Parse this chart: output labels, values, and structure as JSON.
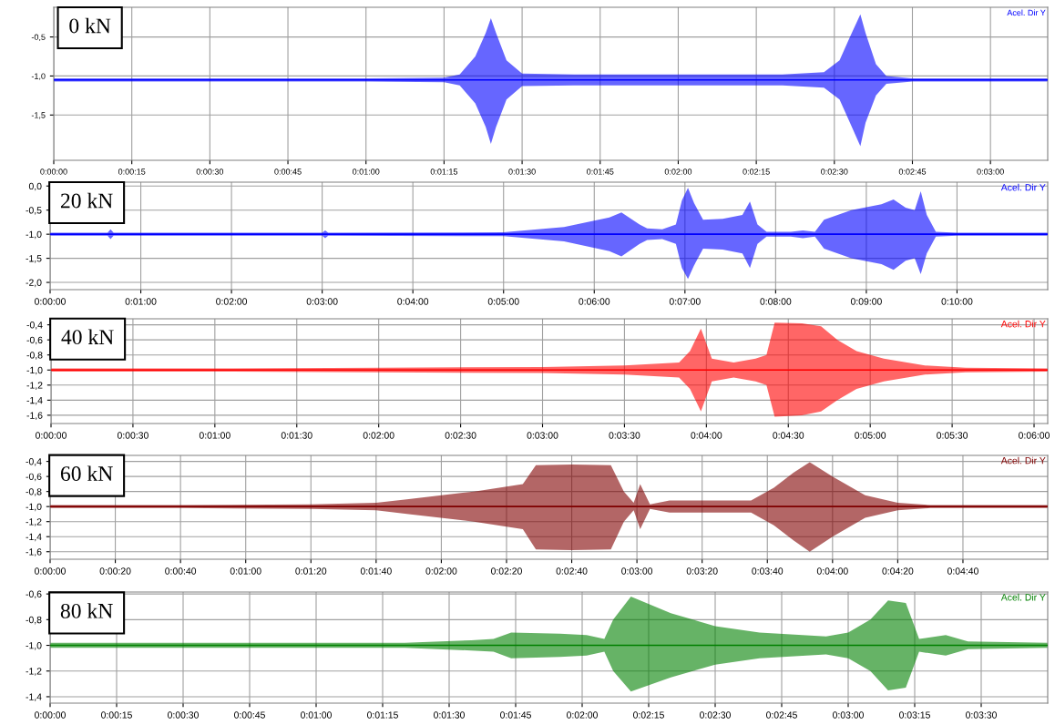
{
  "chart_data": [
    {
      "type": "line",
      "annotations": [
        "0 kN"
      ],
      "legend": "top right",
      "grid": true,
      "xlim": [
        0,
        191
      ],
      "ylim": [
        -2.08,
        -0.12
      ],
      "xticks": [
        {
          "value": 0,
          "label": "0:00:00"
        },
        {
          "value": 15,
          "label": "0:00:15"
        },
        {
          "value": 30,
          "label": "0:00:30"
        },
        {
          "value": 45,
          "label": "0:00:45"
        },
        {
          "value": 60,
          "label": "0:01:00"
        },
        {
          "value": 75,
          "label": "0:01:15"
        },
        {
          "value": 90,
          "label": "0:01:30"
        },
        {
          "value": 105,
          "label": "0:01:45"
        },
        {
          "value": 120,
          "label": "0:02:00"
        },
        {
          "value": 135,
          "label": "0:02:15"
        },
        {
          "value": 150,
          "label": "0:02:30"
        },
        {
          "value": 165,
          "label": "0:02:45"
        },
        {
          "value": 180,
          "label": "0:03:00"
        }
      ],
      "yticks": [
        {
          "value": -0.5,
          "label": "-0,5"
        },
        {
          "value": -1.0,
          "label": "-1,0"
        },
        {
          "value": -1.5,
          "label": "-1,5"
        }
      ],
      "series": [
        {
          "name": "Acel. Dir Y",
          "color": "#0000ff",
          "x": [
            0,
            30,
            60,
            75,
            78,
            81,
            83,
            84,
            85,
            87,
            90,
            100,
            120,
            140,
            148,
            151,
            153,
            155,
            156,
            158,
            160,
            165,
            180,
            191
          ],
          "values": [
            -1.05,
            -1.05,
            -1.05,
            -1.05,
            -1.05,
            -1.05,
            -1.05,
            -1.05,
            -1.05,
            -1.05,
            -1.05,
            -1.05,
            -1.05,
            -1.05,
            -1.05,
            -1.05,
            -1.05,
            -1.05,
            -1.05,
            -1.05,
            -1.05,
            -1.05,
            -1.05,
            -1.05
          ],
          "upper": [
            -1.03,
            -1.03,
            -1.03,
            -1.02,
            -0.98,
            -0.75,
            -0.45,
            -0.26,
            -0.45,
            -0.8,
            -0.97,
            -0.98,
            -0.98,
            -0.98,
            -0.95,
            -0.8,
            -0.5,
            -0.21,
            -0.45,
            -0.85,
            -1.0,
            -1.03,
            -1.03,
            -1.03
          ],
          "lower": [
            -1.07,
            -1.07,
            -1.07,
            -1.08,
            -1.12,
            -1.35,
            -1.65,
            -1.87,
            -1.65,
            -1.3,
            -1.13,
            -1.12,
            -1.12,
            -1.12,
            -1.15,
            -1.3,
            -1.6,
            -1.9,
            -1.6,
            -1.25,
            -1.1,
            -1.07,
            -1.07,
            -1.07
          ]
        }
      ]
    },
    {
      "type": "line",
      "annotations": [
        "20 kN"
      ],
      "legend": "top right",
      "grid": true,
      "xlim": [
        0,
        660
      ],
      "ylim": [
        -2.15,
        0.08
      ],
      "xticks": [
        {
          "value": 0,
          "label": "0:00:00"
        },
        {
          "value": 60,
          "label": "0:01:00"
        },
        {
          "value": 120,
          "label": "0:02:00"
        },
        {
          "value": 180,
          "label": "0:03:00"
        },
        {
          "value": 240,
          "label": "0:04:00"
        },
        {
          "value": 300,
          "label": "0:05:00"
        },
        {
          "value": 360,
          "label": "0:06:00"
        },
        {
          "value": 420,
          "label": "0:07:00"
        },
        {
          "value": 480,
          "label": "0:08:00"
        },
        {
          "value": 540,
          "label": "0:09:00"
        },
        {
          "value": 600,
          "label": "0:10:00"
        }
      ],
      "yticks": [
        {
          "value": 0.0,
          "label": "0,0"
        },
        {
          "value": -0.5,
          "label": "-0,5"
        },
        {
          "value": -1.0,
          "label": "-1,0"
        },
        {
          "value": -1.5,
          "label": "-1,5"
        },
        {
          "value": -2.0,
          "label": "-2,0"
        }
      ],
      "series": [
        {
          "name": "Acel. Dir Y",
          "color": "#0000ff",
          "x": [
            0,
            38,
            40,
            42,
            180,
            182,
            184,
            300,
            340,
            370,
            378,
            390,
            395,
            405,
            414,
            418,
            422,
            426,
            432,
            445,
            458,
            463,
            468,
            474,
            490,
            498,
            506,
            512,
            530,
            550,
            558,
            566,
            572,
            576,
            580,
            586,
            600,
            660
          ],
          "values": [
            -1.0,
            -1.0,
            -1.0,
            -1.0,
            -1.0,
            -1.0,
            -1.0,
            -1.0,
            -1.0,
            -1.0,
            -1.0,
            -1.0,
            -1.0,
            -1.0,
            -1.0,
            -1.0,
            -1.0,
            -1.0,
            -1.0,
            -1.0,
            -1.0,
            -1.0,
            -1.0,
            -1.0,
            -1.0,
            -1.0,
            -1.0,
            -1.0,
            -1.0,
            -1.0,
            -1.0,
            -1.0,
            -1.0,
            -1.0,
            -1.0,
            -1.0,
            -1.0,
            -1.0
          ],
          "upper": [
            -0.97,
            -0.97,
            -0.9,
            -0.97,
            -0.97,
            -0.92,
            -0.97,
            -0.96,
            -0.85,
            -0.65,
            -0.55,
            -0.8,
            -0.88,
            -0.9,
            -0.8,
            -0.3,
            -0.04,
            -0.35,
            -0.7,
            -0.68,
            -0.6,
            -0.32,
            -0.8,
            -0.95,
            -0.95,
            -0.92,
            -0.95,
            -0.7,
            -0.5,
            -0.38,
            -0.28,
            -0.45,
            -0.5,
            -0.11,
            -0.6,
            -0.95,
            -0.97,
            -0.97
          ],
          "lower": [
            -1.03,
            -1.03,
            -1.1,
            -1.03,
            -1.03,
            -1.08,
            -1.03,
            -1.04,
            -1.15,
            -1.35,
            -1.46,
            -1.2,
            -1.12,
            -1.1,
            -1.2,
            -1.7,
            -1.93,
            -1.65,
            -1.3,
            -1.32,
            -1.4,
            -1.7,
            -1.2,
            -1.05,
            -1.05,
            -1.08,
            -1.05,
            -1.3,
            -1.5,
            -1.62,
            -1.74,
            -1.55,
            -1.5,
            -1.83,
            -1.4,
            -1.05,
            -1.03,
            -1.03
          ]
        }
      ]
    },
    {
      "type": "line",
      "annotations": [
        "40 kN"
      ],
      "legend": "top right",
      "grid": true,
      "xlim": [
        0,
        365
      ],
      "ylim": [
        -1.71,
        -0.32
      ],
      "xticks": [
        {
          "value": 0,
          "label": "0:00:00"
        },
        {
          "value": 30,
          "label": "0:00:30"
        },
        {
          "value": 60,
          "label": "0:01:00"
        },
        {
          "value": 90,
          "label": "0:01:30"
        },
        {
          "value": 120,
          "label": "0:02:00"
        },
        {
          "value": 150,
          "label": "0:02:30"
        },
        {
          "value": 180,
          "label": "0:03:00"
        },
        {
          "value": 210,
          "label": "0:03:30"
        },
        {
          "value": 240,
          "label": "0:04:00"
        },
        {
          "value": 270,
          "label": "0:04:30"
        },
        {
          "value": 300,
          "label": "0:05:00"
        },
        {
          "value": 330,
          "label": "0:05:30"
        },
        {
          "value": 360,
          "label": "0:06:00"
        }
      ],
      "yticks": [
        {
          "value": -0.4,
          "label": "-0,4"
        },
        {
          "value": -0.6,
          "label": "-0,6"
        },
        {
          "value": -0.8,
          "label": "-0,8"
        },
        {
          "value": -1.0,
          "label": "-1,0"
        },
        {
          "value": -1.2,
          "label": "-1,2"
        },
        {
          "value": -1.4,
          "label": "-1,4"
        },
        {
          "value": -1.6,
          "label": "-1,6"
        }
      ],
      "series": [
        {
          "name": "Acel. Dir Y",
          "color": "#ff0000",
          "x": [
            0,
            60,
            120,
            180,
            210,
            230,
            234,
            238,
            242,
            250,
            258,
            262,
            265,
            275,
            282,
            288,
            295,
            305,
            320,
            335,
            365
          ],
          "values": [
            -1.0,
            -1.0,
            -1.0,
            -1.0,
            -1.0,
            -1.0,
            -1.0,
            -1.0,
            -1.0,
            -1.0,
            -1.0,
            -1.0,
            -1.0,
            -1.0,
            -1.0,
            -1.0,
            -1.0,
            -1.0,
            -1.0,
            -1.0,
            -1.0
          ],
          "upper": [
            -0.98,
            -0.98,
            -0.97,
            -0.96,
            -0.94,
            -0.9,
            -0.75,
            -0.45,
            -0.85,
            -0.9,
            -0.85,
            -0.8,
            -0.37,
            -0.38,
            -0.42,
            -0.6,
            -0.75,
            -0.85,
            -0.94,
            -0.97,
            -0.98
          ],
          "lower": [
            -1.02,
            -1.02,
            -1.03,
            -1.04,
            -1.06,
            -1.1,
            -1.25,
            -1.55,
            -1.15,
            -1.1,
            -1.15,
            -1.2,
            -1.62,
            -1.6,
            -1.55,
            -1.4,
            -1.25,
            -1.15,
            -1.06,
            -1.03,
            -1.02
          ]
        }
      ]
    },
    {
      "type": "line",
      "annotations": [
        "60 kN"
      ],
      "legend": "top right",
      "grid": true,
      "xlim": [
        0,
        306
      ],
      "ylim": [
        -1.7,
        -0.32
      ],
      "xticks": [
        {
          "value": 0,
          "label": "0:00:00"
        },
        {
          "value": 20,
          "label": "0:00:20"
        },
        {
          "value": 40,
          "label": "0:00:40"
        },
        {
          "value": 60,
          "label": "0:01:00"
        },
        {
          "value": 80,
          "label": "0:01:20"
        },
        {
          "value": 100,
          "label": "0:01:40"
        },
        {
          "value": 120,
          "label": "0:02:00"
        },
        {
          "value": 140,
          "label": "0:02:20"
        },
        {
          "value": 160,
          "label": "0:02:40"
        },
        {
          "value": 180,
          "label": "0:03:00"
        },
        {
          "value": 200,
          "label": "0:03:20"
        },
        {
          "value": 220,
          "label": "0:03:40"
        },
        {
          "value": 240,
          "label": "0:04:00"
        },
        {
          "value": 260,
          "label": "0:04:20"
        },
        {
          "value": 280,
          "label": "0:04:40"
        }
      ],
      "yticks": [
        {
          "value": -0.4,
          "label": "-0,4"
        },
        {
          "value": -0.6,
          "label": "-0,6"
        },
        {
          "value": -0.8,
          "label": "-0,8"
        },
        {
          "value": -1.0,
          "label": "-1,0"
        },
        {
          "value": -1.2,
          "label": "-1,2"
        },
        {
          "value": -1.4,
          "label": "-1,4"
        },
        {
          "value": -1.6,
          "label": "-1,6"
        }
      ],
      "series": [
        {
          "name": "Acel. Dir Y",
          "color": "#800000",
          "x": [
            0,
            40,
            80,
            100,
            110,
            130,
            145,
            149,
            160,
            172,
            176,
            179,
            181,
            184,
            190,
            215,
            222,
            228,
            233,
            240,
            250,
            260,
            270,
            306
          ],
          "values": [
            -1.0,
            -1.0,
            -1.0,
            -1.0,
            -1.0,
            -1.0,
            -1.0,
            -1.0,
            -1.0,
            -1.0,
            -1.0,
            -1.0,
            -1.0,
            -1.0,
            -1.0,
            -1.0,
            -1.0,
            -1.0,
            -1.0,
            -1.0,
            -1.0,
            -1.0,
            -1.0,
            -1.0
          ],
          "upper": [
            -0.98,
            -0.98,
            -0.97,
            -0.95,
            -0.9,
            -0.8,
            -0.7,
            -0.45,
            -0.44,
            -0.45,
            -0.8,
            -0.95,
            -0.7,
            -0.97,
            -0.92,
            -0.92,
            -0.75,
            -0.55,
            -0.41,
            -0.6,
            -0.85,
            -0.95,
            -0.98,
            -0.98
          ],
          "lower": [
            -1.02,
            -1.02,
            -1.03,
            -1.05,
            -1.1,
            -1.2,
            -1.3,
            -1.57,
            -1.58,
            -1.57,
            -1.2,
            -1.05,
            -1.3,
            -1.03,
            -1.08,
            -1.08,
            -1.25,
            -1.45,
            -1.6,
            -1.4,
            -1.15,
            -1.05,
            -1.02,
            -1.02
          ]
        }
      ]
    },
    {
      "type": "line",
      "annotations": [
        "80 kN"
      ],
      "legend": "top right",
      "grid": true,
      "xlim": [
        0,
        225
      ],
      "ylim": [
        -1.45,
        -0.585
      ],
      "xticks": [
        {
          "value": 0,
          "label": "0:00:00"
        },
        {
          "value": 15,
          "label": "0:00:15"
        },
        {
          "value": 30,
          "label": "0:00:30"
        },
        {
          "value": 45,
          "label": "0:00:45"
        },
        {
          "value": 60,
          "label": "0:01:00"
        },
        {
          "value": 75,
          "label": "0:01:15"
        },
        {
          "value": 90,
          "label": "0:01:30"
        },
        {
          "value": 105,
          "label": "0:01:45"
        },
        {
          "value": 120,
          "label": "0:02:00"
        },
        {
          "value": 135,
          "label": "0:02:15"
        },
        {
          "value": 150,
          "label": "0:02:30"
        },
        {
          "value": 165,
          "label": "0:02:45"
        },
        {
          "value": 180,
          "label": "0:03:00"
        },
        {
          "value": 195,
          "label": "0:03:15"
        },
        {
          "value": 210,
          "label": "0:03:30"
        }
      ],
      "yticks": [
        {
          "value": -0.6,
          "label": "-0,6"
        },
        {
          "value": -0.8,
          "label": "-0,8"
        },
        {
          "value": -1.0,
          "label": "-1,0"
        },
        {
          "value": -1.2,
          "label": "-1,2"
        },
        {
          "value": -1.4,
          "label": "-1,4"
        }
      ],
      "series": [
        {
          "name": "Acel. Dir Y",
          "color": "#008000",
          "x": [
            0,
            40,
            80,
            95,
            100,
            104,
            115,
            121,
            125,
            127,
            131,
            140,
            150,
            160,
            175,
            180,
            185,
            189,
            193,
            196,
            202,
            207,
            225
          ],
          "values": [
            -1.0,
            -1.0,
            -1.0,
            -1.0,
            -1.0,
            -1.0,
            -1.0,
            -1.0,
            -1.0,
            -1.0,
            -1.0,
            -1.0,
            -1.0,
            -1.0,
            -1.0,
            -1.0,
            -1.0,
            -1.0,
            -1.0,
            -1.0,
            -1.0,
            -1.0,
            -1.0
          ],
          "upper": [
            -0.98,
            -0.98,
            -0.98,
            -0.96,
            -0.95,
            -0.9,
            -0.91,
            -0.92,
            -0.95,
            -0.8,
            -0.62,
            -0.75,
            -0.85,
            -0.9,
            -0.93,
            -0.9,
            -0.8,
            -0.65,
            -0.67,
            -0.95,
            -0.92,
            -0.97,
            -0.98
          ],
          "lower": [
            -1.02,
            -1.02,
            -1.02,
            -1.04,
            -1.05,
            -1.1,
            -1.09,
            -1.08,
            -1.05,
            -1.2,
            -1.36,
            -1.25,
            -1.15,
            -1.1,
            -1.07,
            -1.1,
            -1.2,
            -1.35,
            -1.33,
            -1.05,
            -1.08,
            -1.03,
            -1.02
          ]
        }
      ]
    }
  ]
}
